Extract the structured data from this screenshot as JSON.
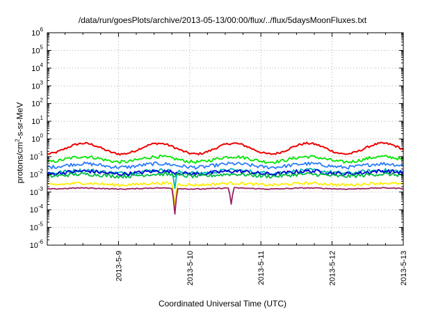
{
  "chart_data": {
    "type": "line",
    "title": "/data/run/goesPlots/archive/2013-05-13/00:00/flux/../flux/5daysMoonFluxes.txt",
    "xlabel": "Coordinated Universal Time (UTC)",
    "ylabel_parts": [
      "protons/cm",
      "2",
      "-s-sr-MeV"
    ],
    "y_scale": "log",
    "ylim": [
      1e-06,
      1000000.0
    ],
    "y_ticks": [
      {
        "base": "10",
        "exp": "-6"
      },
      {
        "base": "10",
        "exp": "-5"
      },
      {
        "base": "10",
        "exp": "-4"
      },
      {
        "base": "10",
        "exp": "-3"
      },
      {
        "base": "10",
        "exp": "-2"
      },
      {
        "base": "10",
        "exp": "-1"
      },
      {
        "base": "10",
        "exp": "0"
      },
      {
        "base": "10",
        "exp": "1"
      },
      {
        "base": "10",
        "exp": "2"
      },
      {
        "base": "10",
        "exp": "3"
      },
      {
        "base": "10",
        "exp": "4"
      },
      {
        "base": "10",
        "exp": "5"
      },
      {
        "base": "10",
        "exp": "6"
      }
    ],
    "xlim": [
      "2013-05-08 00:00",
      "2013-05-13 00:00"
    ],
    "x_ticks": [
      "2013-5-9",
      "2013-5-10",
      "2013-5-11",
      "2013-5-12",
      "2013-5-13"
    ],
    "grid": true,
    "series": [
      {
        "color": "#ee0000",
        "base_log": -0.55,
        "amp": 0.3,
        "noise": 0.12,
        "dips": []
      },
      {
        "color": "#00e600",
        "base_log": -1.15,
        "amp": 0.15,
        "noise": 0.18,
        "dips": []
      },
      {
        "color": "#2a7cff",
        "base_log": -1.5,
        "amp": 0.1,
        "noise": 0.2,
        "dips": []
      },
      {
        "color": "#00b3b3",
        "base_log": -1.85,
        "amp": 0.08,
        "noise": 0.2,
        "dips": [
          {
            "x": "2013-05-09 19:00",
            "depth": 1.0
          }
        ]
      },
      {
        "color": "#0000d6",
        "base_log": -1.9,
        "amp": 0.08,
        "noise": 0.22,
        "dips": []
      },
      {
        "color": "#00bb44",
        "base_log": -2.05,
        "amp": 0.06,
        "noise": 0.2,
        "dips": []
      },
      {
        "color": "#ffee00",
        "base_log": -2.55,
        "amp": 0.05,
        "noise": 0.15,
        "dips": [
          {
            "x": "2013-05-09 19:00",
            "depth": 1.2
          }
        ]
      },
      {
        "color": "#9a2060",
        "base_log": -2.8,
        "amp": 0.03,
        "noise": 0.05,
        "dips": [
          {
            "x": "2013-05-09 19:00",
            "depth": 1.45
          },
          {
            "x": "2013-05-10 14:00",
            "depth": 0.9
          }
        ]
      }
    ]
  }
}
